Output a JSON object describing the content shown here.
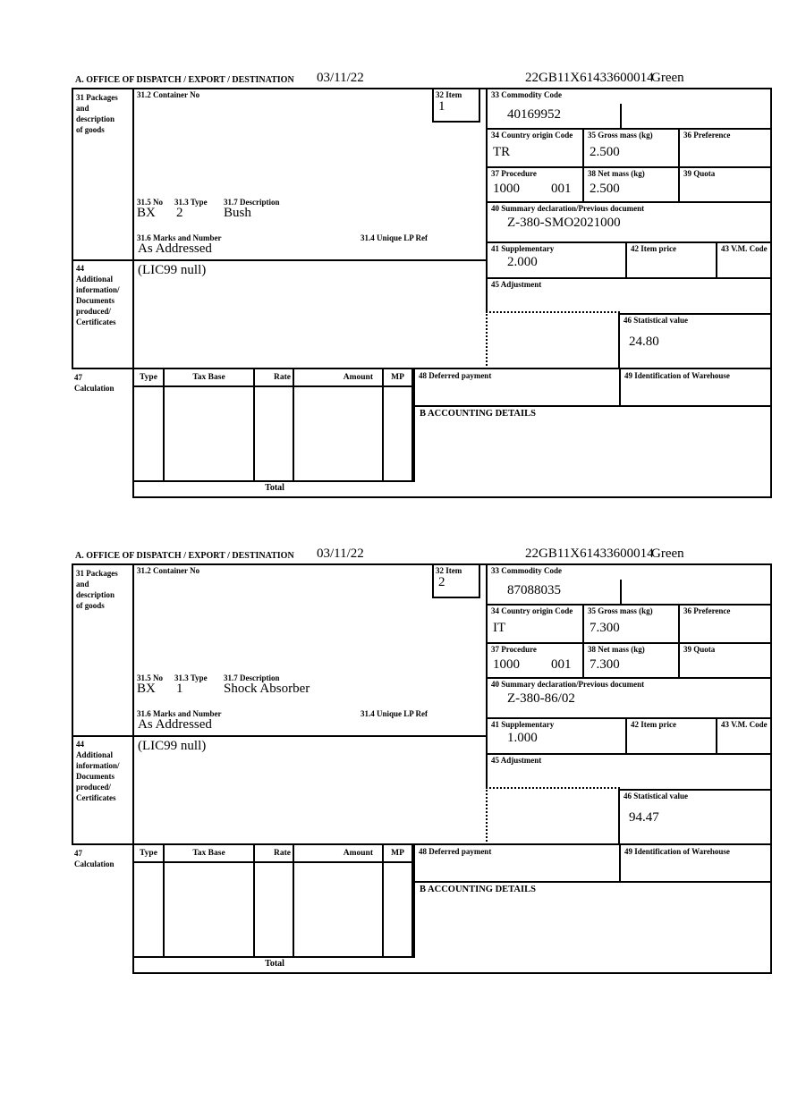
{
  "header": {
    "office": "A.  OFFICE OF DISPATCH / EXPORT / DESTINATION",
    "date": "03/11/22",
    "mrn": "22GB11X61433600014",
    "routing": "Green"
  },
  "labels": {
    "box31": [
      "31 Packages",
      "and",
      "description",
      "of goods"
    ],
    "container_no": "31.2 Container No",
    "item": "32 Item",
    "commodity_code": "33 Commodity Code",
    "country_origin": "34 Country origin Code",
    "gross_mass": "35 Gross mass (kg)",
    "preference": "36 Preference",
    "procedure": "37 Procedure",
    "net_mass": "38 Net mass (kg)",
    "quota": "39 Quota",
    "pkg_no": "31.5 No",
    "pkg_type": "31.3 Type",
    "pkg_desc": "31.7 Description",
    "summary_decl": "40 Summary declaration/Previous document",
    "marks": "31.6 Marks and Number",
    "unique_lp": "31.4 Unique LP Ref",
    "supplementary": "41 Supplementary",
    "item_price": "42 Item price",
    "vm_code": "43 V.M. Code",
    "box44": [
      "44",
      "Additional",
      "information/",
      "Documents",
      "produced/",
      "Certificates"
    ],
    "adjustment": "45 Adjustment",
    "statistical": "46 Statistical value",
    "box47": [
      "47",
      "Calculation"
    ],
    "calc_type": "Type",
    "calc_tax_base": "Tax Base",
    "calc_rate": "Rate",
    "calc_amount": "Amount",
    "calc_mp": "MP",
    "calc_total": "Total",
    "deferred": "48 Deferred payment",
    "warehouse": "49 Identification of Warehouse",
    "accounting": "B ACCOUNTING DETAILS"
  },
  "items": [
    {
      "item_no": "1",
      "commodity_code": "40169952",
      "country_origin": "TR",
      "gross_mass": "2.500",
      "procedure": "1000",
      "procedure_2": "001",
      "net_mass": "2.500",
      "pkg_no": "BX",
      "pkg_type": "2",
      "pkg_desc": "Bush",
      "summary_decl": "Z-380-SMO2021000",
      "marks": "As Addressed",
      "supplementary": "2.000",
      "additional_info": "(LIC99 null)",
      "statistical_value": "24.80"
    },
    {
      "item_no": "2",
      "commodity_code": "87088035",
      "country_origin": "IT",
      "gross_mass": "7.300",
      "procedure": "1000",
      "procedure_2": "001",
      "net_mass": "7.300",
      "pkg_no": "BX",
      "pkg_type": "1",
      "pkg_desc": "Shock Absorber",
      "summary_decl": "Z-380-86/02",
      "marks": "As Addressed",
      "supplementary": "1.000",
      "additional_info": "(LIC99 null)",
      "statistical_value": "94.47"
    }
  ]
}
